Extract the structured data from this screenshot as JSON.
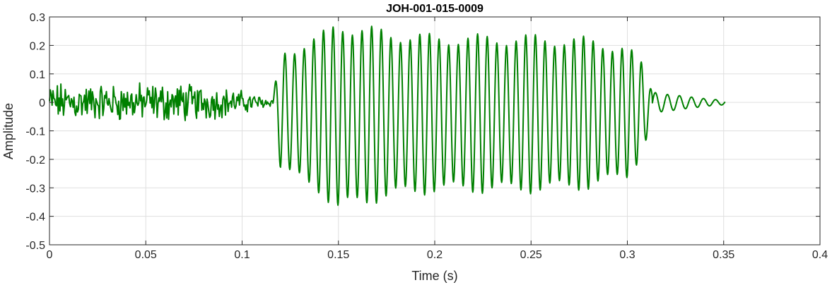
{
  "chart_data": {
    "type": "line",
    "title": "JOH-001-015-0009",
    "xlabel": "Time (s)",
    "ylabel": "Amplitude",
    "xlim": [
      0,
      0.4
    ],
    "ylim": [
      -0.5,
      0.3
    ],
    "grid": true,
    "x_ticks": [
      0,
      0.05,
      0.1,
      0.15,
      0.2,
      0.25,
      0.3,
      0.35,
      0.4
    ],
    "x_tick_labels": [
      "0",
      "0.05",
      "0.1",
      "0.15",
      "0.2",
      "0.25",
      "0.3",
      "0.35",
      "0.4"
    ],
    "y_ticks": [
      0.3,
      0.2,
      0.1,
      0,
      -0.1,
      -0.2,
      -0.3,
      -0.4,
      -0.5
    ],
    "y_tick_labels": [
      "0.3",
      "0.2",
      "0.1",
      "0",
      "-0.1",
      "-0.2",
      "-0.3",
      "-0.4",
      "-0.5"
    ],
    "series": [
      {
        "color": "#008000",
        "segments": [
          {
            "kind": "noise",
            "t0": 0.0,
            "t1": 0.116,
            "freq_hz": 2200,
            "envelope": [
              [
                0.0,
                0.06
              ],
              [
                0.03,
                0.055
              ],
              [
                0.06,
                0.06
              ],
              [
                0.08,
                0.055
              ],
              [
                0.1,
                0.035
              ],
              [
                0.116,
                0.01
              ]
            ]
          },
          {
            "kind": "oscillation",
            "t0": 0.116,
            "t1": 0.313,
            "freq_hz": 200,
            "offset": -0.04,
            "envelope": [
              [
                0.116,
                0.02
              ],
              [
                0.12,
                0.2
              ],
              [
                0.14,
                0.26
              ],
              [
                0.15,
                0.32
              ],
              [
                0.16,
                0.3
              ],
              [
                0.175,
                0.28
              ],
              [
                0.2,
                0.26
              ],
              [
                0.25,
                0.26
              ],
              [
                0.28,
                0.25
              ],
              [
                0.3,
                0.22
              ],
              [
                0.308,
                0.15
              ],
              [
                0.313,
                0.04
              ]
            ]
          },
          {
            "kind": "oscillation",
            "t0": 0.313,
            "t1": 0.351,
            "freq_hz": 160,
            "offset": -0.01,
            "envelope": [
              [
                0.313,
                0.04
              ],
              [
                0.33,
                0.02
              ],
              [
                0.351,
                0.008
              ]
            ]
          }
        ]
      }
    ]
  }
}
